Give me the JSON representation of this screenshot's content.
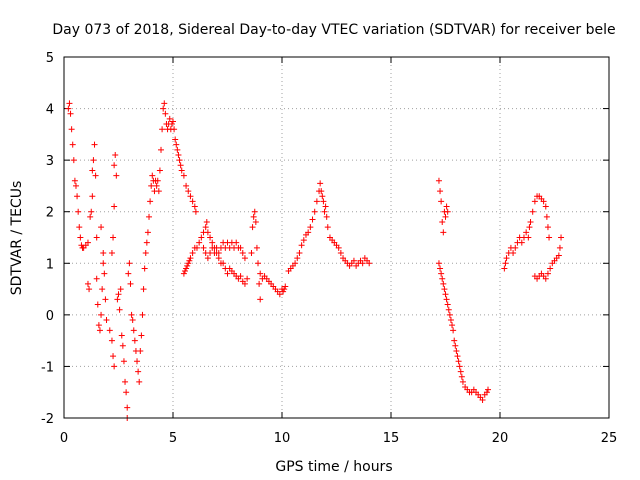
{
  "chart_data": {
    "type": "scatter",
    "title": "Day 073 of 2018, Sidereal Day-to-day VTEC variation (SDTVAR) for receiver bele",
    "xlabel": "GPS time / hours",
    "ylabel": "SDTVAR / TECUs",
    "xlim": [
      0,
      25
    ],
    "ylim": [
      -2,
      5
    ],
    "xticks": [
      0,
      5,
      10,
      15,
      20,
      25
    ],
    "yticks": [
      -2,
      -1,
      0,
      1,
      2,
      3,
      4,
      5
    ],
    "grid": true,
    "marker": "+",
    "color": "#ff0000",
    "series": [
      {
        "name": "SDTVAR",
        "points": [
          [
            0.2,
            4.0
          ],
          [
            0.25,
            4.1
          ],
          [
            0.3,
            3.9
          ],
          [
            0.35,
            3.6
          ],
          [
            0.4,
            3.3
          ],
          [
            0.45,
            3.0
          ],
          [
            0.5,
            2.6
          ],
          [
            0.55,
            2.5
          ],
          [
            0.6,
            2.3
          ],
          [
            0.65,
            2.0
          ],
          [
            0.7,
            1.7
          ],
          [
            0.75,
            1.5
          ],
          [
            0.8,
            1.35
          ],
          [
            0.85,
            1.3
          ],
          [
            0.9,
            1.3
          ],
          [
            1.0,
            1.35
          ],
          [
            1.1,
            1.4
          ],
          [
            1.1,
            0.6
          ],
          [
            1.15,
            0.5
          ],
          [
            1.2,
            1.9
          ],
          [
            1.25,
            2.0
          ],
          [
            1.3,
            2.3
          ],
          [
            1.3,
            2.8
          ],
          [
            1.35,
            3.0
          ],
          [
            1.4,
            3.3
          ],
          [
            1.45,
            2.7
          ],
          [
            1.5,
            0.7
          ],
          [
            1.5,
            1.5
          ],
          [
            1.55,
            0.2
          ],
          [
            1.6,
            -0.2
          ],
          [
            1.65,
            -0.3
          ],
          [
            1.7,
            0.0
          ],
          [
            1.75,
            0.5
          ],
          [
            1.8,
            1.0
          ],
          [
            1.85,
            0.8
          ],
          [
            1.9,
            0.3
          ],
          [
            1.95,
            -0.1
          ],
          [
            1.7,
            1.7
          ],
          [
            1.8,
            1.2
          ],
          [
            2.1,
            -0.3
          ],
          [
            2.2,
            -0.5
          ],
          [
            2.25,
            -0.8
          ],
          [
            2.3,
            -1.0
          ],
          [
            2.2,
            1.2
          ],
          [
            2.25,
            1.5
          ],
          [
            2.3,
            2.1
          ],
          [
            2.3,
            2.9
          ],
          [
            2.35,
            3.1
          ],
          [
            2.4,
            2.7
          ],
          [
            2.45,
            0.3
          ],
          [
            2.5,
            0.4
          ],
          [
            2.55,
            0.1
          ],
          [
            2.6,
            0.5
          ],
          [
            2.65,
            -0.4
          ],
          [
            2.7,
            -0.6
          ],
          [
            2.75,
            -0.9
          ],
          [
            2.8,
            -1.3
          ],
          [
            2.85,
            -1.5
          ],
          [
            2.9,
            -1.8
          ],
          [
            2.9,
            -2.0
          ],
          [
            2.95,
            0.8
          ],
          [
            3.0,
            1.0
          ],
          [
            3.05,
            0.6
          ],
          [
            3.1,
            0.0
          ],
          [
            3.15,
            -0.1
          ],
          [
            3.2,
            -0.3
          ],
          [
            3.25,
            -0.5
          ],
          [
            3.3,
            -0.7
          ],
          [
            3.35,
            -0.9
          ],
          [
            3.4,
            -1.1
          ],
          [
            3.45,
            -1.3
          ],
          [
            3.5,
            -0.7
          ],
          [
            3.55,
            -0.4
          ],
          [
            3.6,
            0.0
          ],
          [
            3.65,
            0.5
          ],
          [
            3.7,
            0.9
          ],
          [
            3.75,
            1.2
          ],
          [
            3.8,
            1.4
          ],
          [
            3.85,
            1.6
          ],
          [
            3.9,
            1.9
          ],
          [
            3.95,
            2.2
          ],
          [
            4.0,
            2.5
          ],
          [
            4.05,
            2.7
          ],
          [
            4.1,
            2.6
          ],
          [
            4.15,
            2.4
          ],
          [
            4.2,
            2.6
          ],
          [
            4.25,
            2.5
          ],
          [
            4.3,
            2.6
          ],
          [
            4.35,
            2.4
          ],
          [
            4.4,
            2.8
          ],
          [
            4.45,
            3.2
          ],
          [
            4.5,
            3.6
          ],
          [
            4.55,
            4.0
          ],
          [
            4.6,
            4.1
          ],
          [
            4.65,
            3.9
          ],
          [
            4.7,
            3.7
          ],
          [
            4.75,
            3.6
          ],
          [
            4.8,
            3.7
          ],
          [
            4.85,
            3.8
          ],
          [
            4.9,
            3.6
          ],
          [
            4.95,
            3.7
          ],
          [
            5.0,
            3.75
          ],
          [
            5.05,
            3.6
          ],
          [
            5.1,
            3.4
          ],
          [
            5.15,
            3.3
          ],
          [
            5.2,
            3.2
          ],
          [
            5.25,
            3.1
          ],
          [
            5.3,
            3.0
          ],
          [
            5.35,
            2.9
          ],
          [
            5.4,
            2.8
          ],
          [
            5.5,
            2.7
          ],
          [
            5.6,
            2.5
          ],
          [
            5.7,
            2.4
          ],
          [
            5.8,
            2.3
          ],
          [
            5.9,
            2.2
          ],
          [
            6.0,
            2.1
          ],
          [
            6.05,
            2.0
          ],
          [
            5.5,
            0.8
          ],
          [
            5.55,
            0.85
          ],
          [
            5.6,
            0.9
          ],
          [
            5.65,
            0.95
          ],
          [
            5.7,
            1.0
          ],
          [
            5.75,
            1.05
          ],
          [
            5.8,
            1.1
          ],
          [
            5.9,
            1.2
          ],
          [
            6.0,
            1.3
          ],
          [
            6.1,
            1.3
          ],
          [
            6.2,
            1.4
          ],
          [
            6.3,
            1.5
          ],
          [
            6.4,
            1.6
          ],
          [
            6.5,
            1.7
          ],
          [
            6.55,
            1.8
          ],
          [
            6.6,
            1.6
          ],
          [
            6.7,
            1.5
          ],
          [
            6.8,
            1.4
          ],
          [
            6.9,
            1.3
          ],
          [
            7.0,
            1.2
          ],
          [
            7.1,
            1.1
          ],
          [
            7.2,
            1.0
          ],
          [
            7.3,
            1.0
          ],
          [
            7.4,
            0.9
          ],
          [
            7.5,
            0.8
          ],
          [
            6.4,
            1.3
          ],
          [
            6.5,
            1.2
          ],
          [
            6.6,
            1.1
          ],
          [
            6.7,
            1.2
          ],
          [
            6.8,
            1.3
          ],
          [
            6.9,
            1.2
          ],
          [
            7.0,
            1.3
          ],
          [
            7.1,
            1.2
          ],
          [
            7.2,
            1.3
          ],
          [
            7.3,
            1.4
          ],
          [
            7.4,
            1.3
          ],
          [
            7.5,
            1.4
          ],
          [
            7.6,
            1.3
          ],
          [
            7.7,
            1.4
          ],
          [
            7.8,
            1.3
          ],
          [
            7.9,
            1.4
          ],
          [
            8.0,
            1.3
          ],
          [
            8.1,
            1.3
          ],
          [
            8.2,
            1.2
          ],
          [
            8.3,
            1.1
          ],
          [
            7.6,
            0.9
          ],
          [
            7.7,
            0.85
          ],
          [
            7.8,
            0.8
          ],
          [
            7.9,
            0.75
          ],
          [
            8.0,
            0.7
          ],
          [
            8.1,
            0.75
          ],
          [
            8.2,
            0.65
          ],
          [
            8.3,
            0.6
          ],
          [
            8.4,
            0.7
          ],
          [
            8.6,
            1.2
          ],
          [
            8.65,
            1.7
          ],
          [
            8.7,
            1.9
          ],
          [
            8.75,
            2.0
          ],
          [
            8.8,
            1.8
          ],
          [
            8.85,
            1.3
          ],
          [
            8.9,
            1.0
          ],
          [
            8.95,
            0.6
          ],
          [
            9.0,
            0.3
          ],
          [
            9.0,
            0.8
          ],
          [
            9.1,
            0.7
          ],
          [
            9.2,
            0.75
          ],
          [
            9.3,
            0.7
          ],
          [
            9.4,
            0.65
          ],
          [
            9.5,
            0.6
          ],
          [
            9.6,
            0.55
          ],
          [
            9.7,
            0.5
          ],
          [
            9.8,
            0.45
          ],
          [
            9.9,
            0.4
          ],
          [
            10.0,
            0.5
          ],
          [
            10.05,
            0.45
          ],
          [
            10.1,
            0.5
          ],
          [
            10.15,
            0.55
          ],
          [
            10.3,
            0.85
          ],
          [
            10.4,
            0.9
          ],
          [
            10.5,
            0.95
          ],
          [
            10.6,
            1.0
          ],
          [
            10.7,
            1.1
          ],
          [
            10.8,
            1.2
          ],
          [
            10.9,
            1.35
          ],
          [
            11.0,
            1.45
          ],
          [
            11.1,
            1.55
          ],
          [
            11.2,
            1.6
          ],
          [
            11.3,
            1.7
          ],
          [
            11.4,
            1.85
          ],
          [
            11.5,
            2.0
          ],
          [
            11.6,
            2.2
          ],
          [
            11.7,
            2.4
          ],
          [
            11.75,
            2.55
          ],
          [
            11.8,
            2.4
          ],
          [
            11.85,
            2.3
          ],
          [
            11.9,
            2.2
          ],
          [
            11.95,
            2.0
          ],
          [
            12.0,
            2.1
          ],
          [
            12.05,
            1.9
          ],
          [
            12.1,
            1.7
          ],
          [
            12.2,
            1.5
          ],
          [
            12.3,
            1.45
          ],
          [
            12.4,
            1.4
          ],
          [
            12.5,
            1.35
          ],
          [
            12.6,
            1.3
          ],
          [
            12.7,
            1.2
          ],
          [
            12.8,
            1.1
          ],
          [
            12.9,
            1.05
          ],
          [
            13.0,
            1.0
          ],
          [
            13.1,
            0.95
          ],
          [
            13.2,
            1.0
          ],
          [
            13.3,
            1.05
          ],
          [
            13.4,
            0.95
          ],
          [
            13.5,
            1.0
          ],
          [
            13.6,
            1.05
          ],
          [
            13.7,
            1.0
          ],
          [
            13.8,
            1.1
          ],
          [
            13.9,
            1.05
          ],
          [
            14.0,
            1.0
          ],
          [
            17.2,
            2.6
          ],
          [
            17.25,
            2.4
          ],
          [
            17.3,
            2.2
          ],
          [
            17.35,
            1.8
          ],
          [
            17.4,
            1.6
          ],
          [
            17.45,
            2.0
          ],
          [
            17.5,
            1.9
          ],
          [
            17.55,
            2.1
          ],
          [
            17.6,
            2.0
          ],
          [
            17.2,
            1.0
          ],
          [
            17.25,
            0.9
          ],
          [
            17.3,
            0.8
          ],
          [
            17.35,
            0.7
          ],
          [
            17.4,
            0.6
          ],
          [
            17.45,
            0.5
          ],
          [
            17.5,
            0.4
          ],
          [
            17.55,
            0.3
          ],
          [
            17.6,
            0.2
          ],
          [
            17.65,
            0.1
          ],
          [
            17.7,
            0.0
          ],
          [
            17.75,
            -0.1
          ],
          [
            17.8,
            -0.2
          ],
          [
            17.85,
            -0.3
          ],
          [
            17.9,
            -0.5
          ],
          [
            17.95,
            -0.6
          ],
          [
            18.0,
            -0.7
          ],
          [
            18.05,
            -0.8
          ],
          [
            18.1,
            -0.9
          ],
          [
            18.15,
            -1.0
          ],
          [
            18.2,
            -1.1
          ],
          [
            18.25,
            -1.2
          ],
          [
            18.3,
            -1.3
          ],
          [
            18.4,
            -1.4
          ],
          [
            18.5,
            -1.45
          ],
          [
            18.6,
            -1.5
          ],
          [
            18.7,
            -1.5
          ],
          [
            18.8,
            -1.45
          ],
          [
            18.9,
            -1.5
          ],
          [
            19.0,
            -1.55
          ],
          [
            19.1,
            -1.6
          ],
          [
            19.2,
            -1.65
          ],
          [
            19.3,
            -1.55
          ],
          [
            19.4,
            -1.5
          ],
          [
            19.45,
            -1.45
          ],
          [
            20.2,
            0.9
          ],
          [
            20.25,
            1.0
          ],
          [
            20.3,
            1.1
          ],
          [
            20.4,
            1.2
          ],
          [
            20.5,
            1.3
          ],
          [
            20.6,
            1.2
          ],
          [
            20.7,
            1.3
          ],
          [
            20.8,
            1.4
          ],
          [
            20.9,
            1.5
          ],
          [
            21.0,
            1.4
          ],
          [
            21.1,
            1.5
          ],
          [
            21.2,
            1.6
          ],
          [
            21.3,
            1.5
          ],
          [
            21.35,
            1.7
          ],
          [
            21.4,
            1.8
          ],
          [
            21.5,
            2.0
          ],
          [
            21.6,
            2.2
          ],
          [
            21.7,
            2.3
          ],
          [
            21.8,
            2.3
          ],
          [
            21.9,
            2.25
          ],
          [
            22.0,
            2.2
          ],
          [
            22.1,
            2.1
          ],
          [
            22.15,
            1.9
          ],
          [
            22.2,
            1.7
          ],
          [
            22.25,
            1.5
          ],
          [
            21.6,
            0.75
          ],
          [
            21.7,
            0.7
          ],
          [
            21.8,
            0.75
          ],
          [
            21.9,
            0.8
          ],
          [
            22.0,
            0.75
          ],
          [
            22.1,
            0.7
          ],
          [
            22.2,
            0.8
          ],
          [
            22.3,
            0.9
          ],
          [
            22.4,
            1.0
          ],
          [
            22.5,
            1.05
          ],
          [
            22.6,
            1.1
          ],
          [
            22.7,
            1.15
          ],
          [
            22.75,
            1.3
          ],
          [
            22.8,
            1.5
          ]
        ]
      }
    ]
  }
}
